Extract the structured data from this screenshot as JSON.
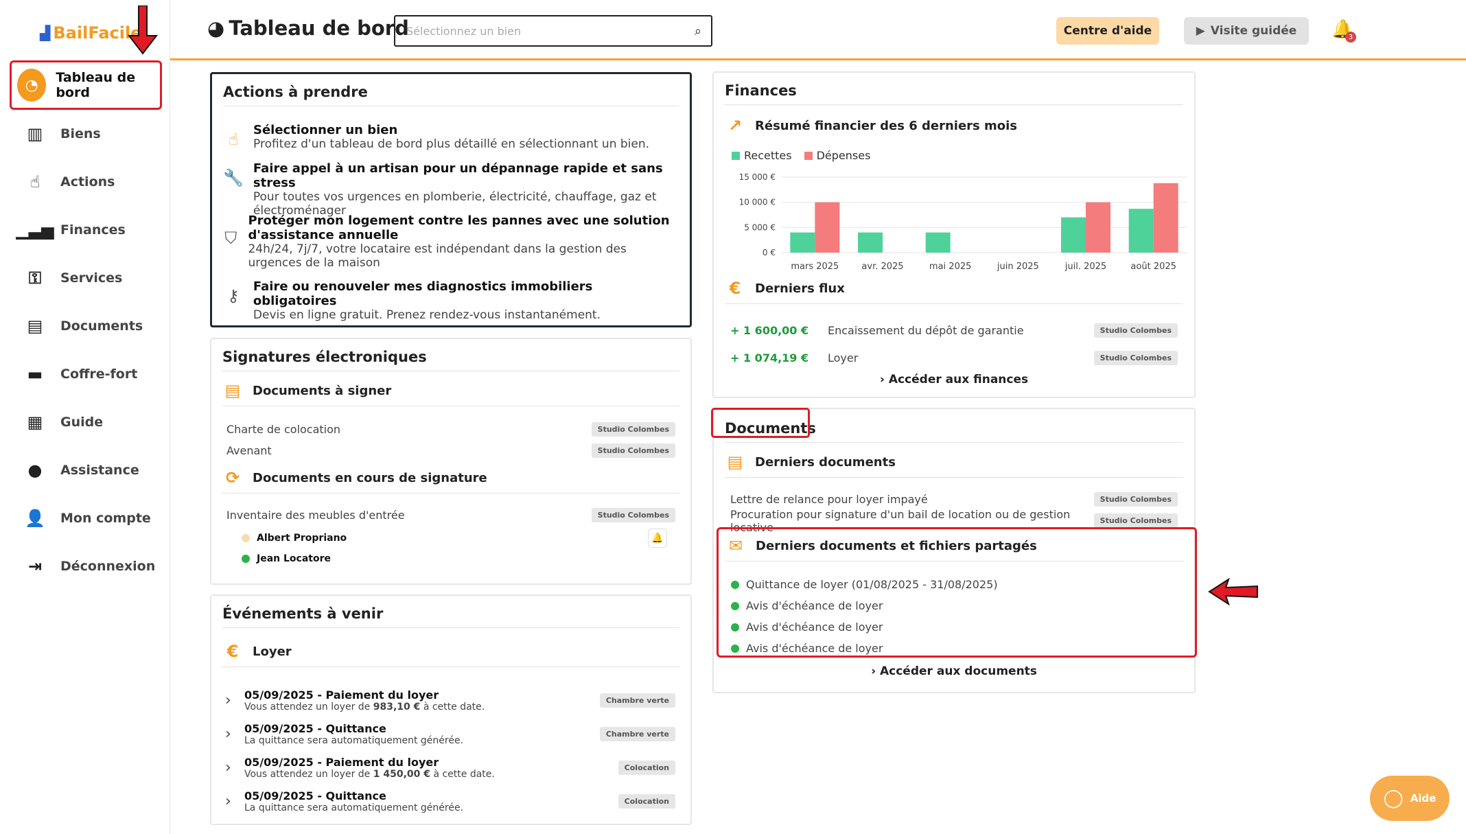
{
  "app": {
    "logo": "BailFacile"
  },
  "sidebar": {
    "items": [
      {
        "label": "Tableau de bord",
        "icon": "gauge-icon"
      },
      {
        "label": "Biens",
        "icon": "building-icon"
      },
      {
        "label": "Actions",
        "icon": "pointer-hand-icon"
      },
      {
        "label": "Finances",
        "icon": "bar-chart-icon"
      },
      {
        "label": "Services",
        "icon": "wrench-icon"
      },
      {
        "label": "Documents",
        "icon": "file-icon"
      },
      {
        "label": "Coffre-fort",
        "icon": "archive-icon"
      },
      {
        "label": "Guide",
        "icon": "book-icon"
      },
      {
        "label": "Assistance",
        "icon": "chat-icon"
      },
      {
        "label": "Mon compte",
        "icon": "user-icon"
      },
      {
        "label": "Déconnexion",
        "icon": "logout-icon"
      }
    ]
  },
  "header": {
    "title": "Tableau de bord",
    "search_placeholder": "Sélectionnez un bien",
    "help_label": "Centre d'aide",
    "tour_label": "Visite guidée",
    "notif_count": "3"
  },
  "actions": {
    "title": "Actions à prendre",
    "items": [
      {
        "title": "Sélectionner un bien",
        "desc": "Profitez d'un tableau de bord plus détaillé en sélectionnant un bien."
      },
      {
        "title": "Faire appel à un artisan pour un dépannage rapide et sans stress",
        "desc": "Pour toutes vos urgences en plomberie, électricité, chauffage, gaz et électroménager"
      },
      {
        "title": "Protéger mon logement contre les pannes avec une solution d'assistance annuelle",
        "desc": "24h/24, 7j/7, votre locataire est indépendant dans la gestion des urgences de la maison"
      },
      {
        "title": "Faire ou renouveler mes diagnostics immobiliers obligatoires",
        "desc": "Devis en ligne gratuit. Prenez rendez-vous instantanément."
      }
    ]
  },
  "signatures": {
    "title": "Signatures électroniques",
    "to_sign_title": "Documents à signer",
    "to_sign": [
      {
        "name": "Charte de colocation",
        "tag": "Studio Colombes"
      },
      {
        "name": "Avenant",
        "tag": "Studio Colombes"
      }
    ],
    "in_progress_title": "Documents en cours de signature",
    "in_progress": {
      "name": "Inventaire des meubles d'entrée",
      "tag": "Studio Colombes"
    },
    "signers": [
      {
        "name": "Albert Propriano",
        "color": "#f6dcb0"
      },
      {
        "name": "Jean Locatore",
        "color": "#2bb24c"
      }
    ]
  },
  "events": {
    "title": "Événements à venir",
    "section": "Loyer",
    "items": [
      {
        "title": "05/09/2025 - Paiement du loyer",
        "desc_pre": "Vous attendez un loyer de ",
        "amount": "983,10 €",
        "desc_post": " à cette date.",
        "tag": "Chambre verte"
      },
      {
        "title": "05/09/2025 - Quittance",
        "desc_pre": "La quittance sera automatiquement générée.",
        "amount": "",
        "desc_post": "",
        "tag": "Chambre verte"
      },
      {
        "title": "05/09/2025 - Paiement du loyer",
        "desc_pre": "Vous attendez un loyer de ",
        "amount": "1 450,00 €",
        "desc_post": " à cette date.",
        "tag": "Colocation"
      },
      {
        "title": "05/09/2025 - Quittance",
        "desc_pre": "La quittance sera automatiquement générée.",
        "amount": "",
        "desc_post": "",
        "tag": "Colocation"
      }
    ]
  },
  "finances": {
    "title": "Finances",
    "summary_title": "Résumé financier des 6 derniers mois",
    "flux_title": "Derniers flux",
    "flux": [
      {
        "amount": "+ 1 600,00 €",
        "label": "Encaissement du dépôt de garantie",
        "tag": "Studio Colombes"
      },
      {
        "amount": "+ 1 074,19 €",
        "label": "Loyer",
        "tag": "Studio Colombes"
      }
    ],
    "link": "Accéder aux finances"
  },
  "documents": {
    "title": "Documents",
    "recent_title": "Derniers documents",
    "recent": [
      {
        "name": "Lettre de relance pour loyer impayé",
        "tag": "Studio Colombes"
      },
      {
        "name": "Procuration pour signature d'un bail de location ou de gestion locative",
        "tag": "Studio Colombes"
      }
    ],
    "shared_title": "Derniers documents et fichiers partagés",
    "shared": [
      "Quittance de loyer (01/08/2025 - 31/08/2025)",
      "Avis d'échéance de loyer",
      "Avis d'échéance de loyer",
      "Avis d'échéance de loyer"
    ],
    "link": "Accéder aux documents"
  },
  "aide_button": "Aide",
  "colors": {
    "accent": "#f39a1f",
    "recettes": "#4fd19a",
    "depenses": "#f57c7c",
    "highlight": "#e01b24"
  },
  "chart_data": {
    "type": "bar",
    "categories": [
      "mars 2025",
      "avr. 2025",
      "mai 2025",
      "juin 2025",
      "juil. 2025",
      "août 2025"
    ],
    "series": [
      {
        "name": "Recettes",
        "values": [
          4000,
          4000,
          4000,
          0,
          7000,
          8700
        ]
      },
      {
        "name": "Dépenses",
        "values": [
          10000,
          0,
          0,
          0,
          10000,
          13800
        ]
      }
    ],
    "yticks": [
      "15 000 €",
      "10 000 €",
      "5 000 €",
      "0 €"
    ],
    "ylim": [
      0,
      15000
    ],
    "legend": "top-left"
  }
}
